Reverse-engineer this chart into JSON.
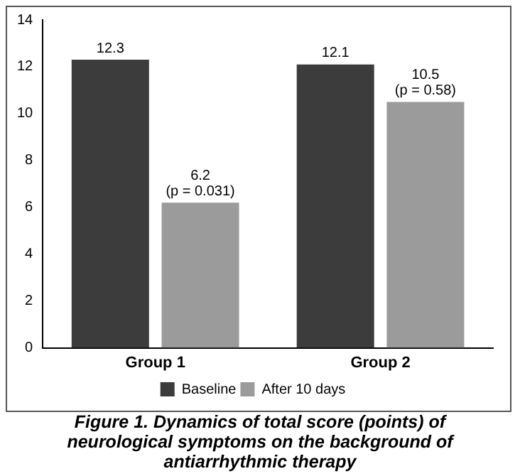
{
  "chart_data": {
    "type": "bar",
    "title": "Figure 1. Dynamics of total score (points) of neurological symptoms on the background of antiarrhythmic therapy",
    "categories": [
      "Group 1",
      "Group 2"
    ],
    "series": [
      {
        "name": "Baseline",
        "color": "#3c3c3c",
        "values": [
          12.3,
          12.1
        ],
        "value_labels": [
          "12.3",
          "12.1"
        ]
      },
      {
        "name": "After 10 days",
        "color": "#9b9b9b",
        "values": [
          6.2,
          10.5
        ],
        "value_labels": [
          "6.2",
          "10.5"
        ]
      }
    ],
    "annotations": [
      {
        "text": "(p = 0.031)",
        "x": "Group 1",
        "y": 6.2
      },
      {
        "text": "(p = 0.58)",
        "x": "Group 2",
        "y": 10.5
      }
    ],
    "ylim": [
      0,
      14
    ],
    "yticks": [
      0,
      2,
      4,
      6,
      8,
      10,
      12,
      14
    ],
    "grid": false,
    "legend": "bottom"
  }
}
